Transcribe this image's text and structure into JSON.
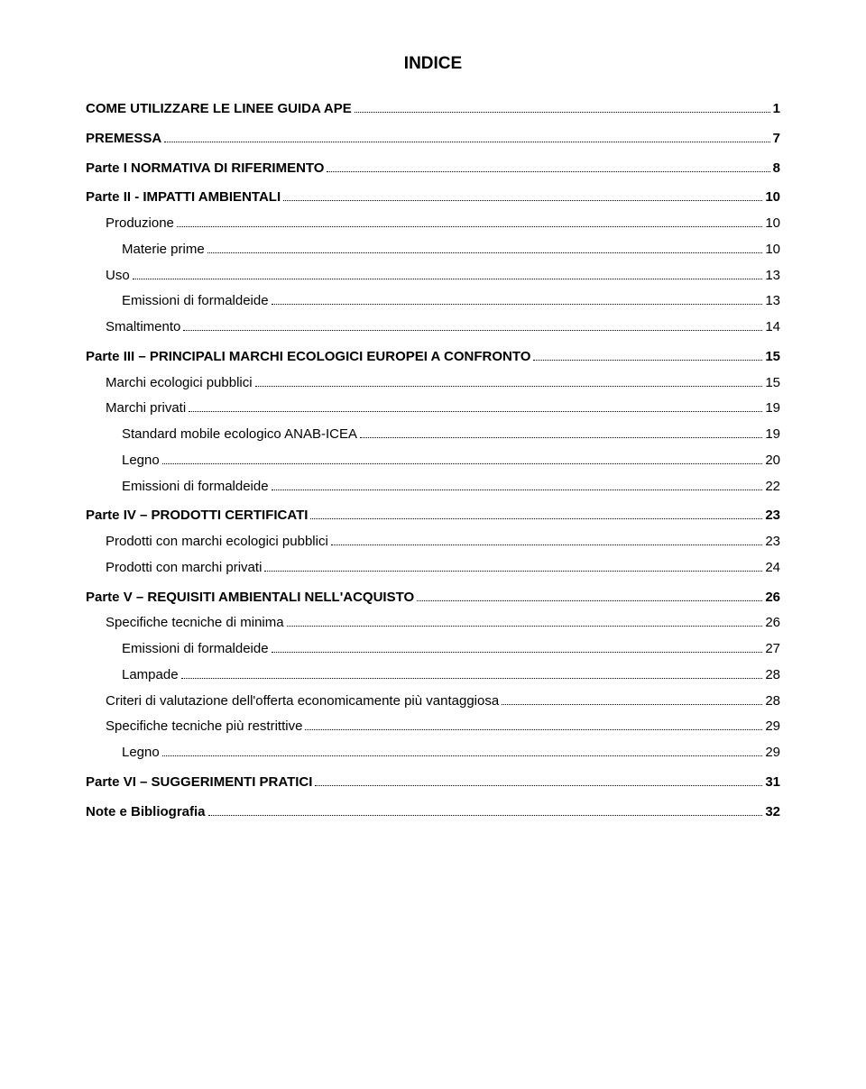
{
  "title": "INDICE",
  "entries": [
    {
      "label": "COME UTILIZZARE LE LINEE GUIDA APE",
      "page": "1",
      "bold": true,
      "indent": 0,
      "gap": false
    },
    {
      "label": "PREMESSA",
      "page": "7",
      "bold": true,
      "indent": 0,
      "gap": true
    },
    {
      "label": "Parte I NORMATIVA DI RIFERIMENTO",
      "page": "8",
      "bold": true,
      "indent": 0,
      "gap": true
    },
    {
      "label": "Parte II - IMPATTI AMBIENTALI",
      "page": "10",
      "bold": true,
      "indent": 0,
      "gap": true
    },
    {
      "label": "Produzione",
      "page": "10",
      "bold": false,
      "indent": 1,
      "gap": false
    },
    {
      "label": "Materie prime",
      "page": "10",
      "bold": false,
      "indent": 2,
      "gap": false
    },
    {
      "label": "Uso",
      "page": "13",
      "bold": false,
      "indent": 1,
      "gap": false
    },
    {
      "label": "Emissioni di formaldeide",
      "page": "13",
      "bold": false,
      "indent": 2,
      "gap": false
    },
    {
      "label": "Smaltimento",
      "page": "14",
      "bold": false,
      "indent": 1,
      "gap": false
    },
    {
      "label": "Parte III – PRINCIPALI MARCHI ECOLOGICI EUROPEI A CONFRONTO",
      "page": "15",
      "bold": true,
      "indent": 0,
      "gap": true
    },
    {
      "label": "Marchi ecologici pubblici",
      "page": "15",
      "bold": false,
      "indent": 1,
      "gap": false
    },
    {
      "label": "Marchi privati",
      "page": "19",
      "bold": false,
      "indent": 1,
      "gap": false
    },
    {
      "label": "Standard mobile ecologico ANAB-ICEA",
      "page": "19",
      "bold": false,
      "indent": 2,
      "gap": false
    },
    {
      "label": "Legno",
      "page": "20",
      "bold": false,
      "indent": 2,
      "gap": false
    },
    {
      "label": "Emissioni di formaldeide",
      "page": "22",
      "bold": false,
      "indent": 2,
      "gap": false
    },
    {
      "label": "Parte IV – PRODOTTI CERTIFICATI",
      "page": "23",
      "bold": true,
      "indent": 0,
      "gap": true
    },
    {
      "label": "Prodotti con marchi ecologici pubblici",
      "page": "23",
      "bold": false,
      "indent": 1,
      "gap": false
    },
    {
      "label": "Prodotti con marchi privati",
      "page": "24",
      "bold": false,
      "indent": 1,
      "gap": false
    },
    {
      "label": "Parte V – REQUISITI AMBIENTALI NELL'ACQUISTO",
      "page": "26",
      "bold": true,
      "indent": 0,
      "gap": true
    },
    {
      "label": "Specifiche tecniche di minima",
      "page": "26",
      "bold": false,
      "indent": 1,
      "gap": false
    },
    {
      "label": "Emissioni di formaldeide",
      "page": "27",
      "bold": false,
      "indent": 2,
      "gap": false
    },
    {
      "label": "Lampade",
      "page": "28",
      "bold": false,
      "indent": 2,
      "gap": false
    },
    {
      "label": "Criteri di valutazione dell'offerta economicamente più vantaggiosa",
      "page": "28",
      "bold": false,
      "indent": 1,
      "gap": false
    },
    {
      "label": "Specifiche tecniche più restrittive",
      "page": "29",
      "bold": false,
      "indent": 1,
      "gap": false
    },
    {
      "label": "Legno",
      "page": "29",
      "bold": false,
      "indent": 2,
      "gap": false
    },
    {
      "label": "Parte VI – SUGGERIMENTI PRATICI",
      "page": "31",
      "bold": true,
      "indent": 0,
      "gap": true
    },
    {
      "label": "Note e Bibliografia",
      "page": "32",
      "bold": true,
      "indent": 0,
      "gap": true
    }
  ]
}
